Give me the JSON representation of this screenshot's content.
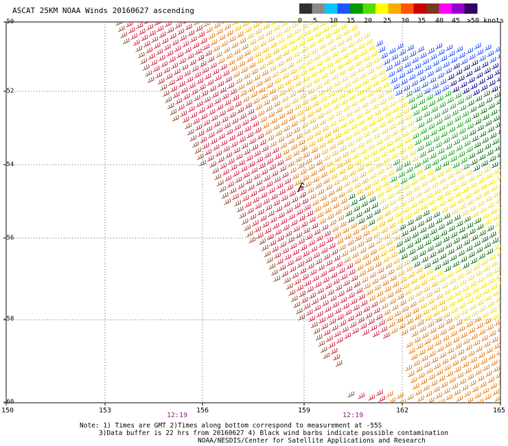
{
  "title": "ASCAT 25KM NOAA Winds 20160627 ascending",
  "colorbar": {
    "ticks": [
      "0",
      "5",
      "10",
      "15",
      "20",
      "25",
      "30",
      "35",
      "40",
      "45",
      ">50 knots"
    ],
    "colors": [
      "#2f2f2f",
      "#8a8a8a",
      "#00c8ff",
      "#1a55ff",
      "#009900",
      "#55dd00",
      "#ffff00",
      "#ffaa00",
      "#ff5500",
      "#cc0000",
      "#7a3a1a",
      "#ff00ff",
      "#9900cc",
      "#330066"
    ]
  },
  "axes": {
    "lat_labels": [
      "-50",
      "-52",
      "-54",
      "-56",
      "-58",
      "-60"
    ],
    "lon_labels": [
      "150",
      "153",
      "156",
      "159",
      "162",
      "165"
    ],
    "time_labels": [
      "12:19",
      "12:19"
    ]
  },
  "notes": [
    "Note: 1) Times are GMT 2)Times along bottom correspond to measurement at -55S",
    "3)Data buffer is 22 hrs from 20160627 4) Black wind barbs indicate possible contamination",
    "NOAA/NESDIS/Center for Satellite Applications and Research"
  ],
  "barb_colors": {
    "crimson": "#d01a3a",
    "brown": "#8b4a2a",
    "orange": "#e07a10",
    "gold": "#f0b800",
    "yellow": "#f0e000",
    "green": "#11a011",
    "darkgreen": "#0a6a0a",
    "blue": "#1a4aff",
    "navy": "#000088",
    "black": "#000000"
  }
}
